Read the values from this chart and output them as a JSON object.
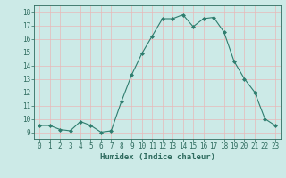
{
  "x": [
    0,
    1,
    2,
    3,
    4,
    5,
    6,
    7,
    8,
    9,
    10,
    11,
    12,
    13,
    14,
    15,
    16,
    17,
    18,
    19,
    20,
    21,
    22,
    23
  ],
  "y": [
    9.5,
    9.5,
    9.2,
    9.1,
    9.8,
    9.5,
    9.0,
    9.1,
    11.3,
    13.3,
    14.9,
    16.2,
    17.5,
    17.5,
    17.8,
    16.9,
    17.5,
    17.6,
    16.5,
    14.3,
    13.0,
    12.0,
    10.0,
    9.5
  ],
  "line_color": "#2e7d6e",
  "marker": "D",
  "marker_size": 2.0,
  "bg_color": "#cceae7",
  "grid_color_major": "#e8b8b8",
  "grid_color_minor": "#cceae7",
  "xlabel": "Humidex (Indice chaleur)",
  "xlim": [
    -0.5,
    23.5
  ],
  "ylim": [
    8.5,
    18.5
  ],
  "yticks": [
    9,
    10,
    11,
    12,
    13,
    14,
    15,
    16,
    17,
    18
  ],
  "xticks": [
    0,
    1,
    2,
    3,
    4,
    5,
    6,
    7,
    8,
    9,
    10,
    11,
    12,
    13,
    14,
    15,
    16,
    17,
    18,
    19,
    20,
    21,
    22,
    23
  ],
  "tick_color": "#2e6b5e",
  "label_color": "#2e6b5e",
  "font_family": "monospace",
  "tick_fontsize": 5.5,
  "xlabel_fontsize": 6.5
}
